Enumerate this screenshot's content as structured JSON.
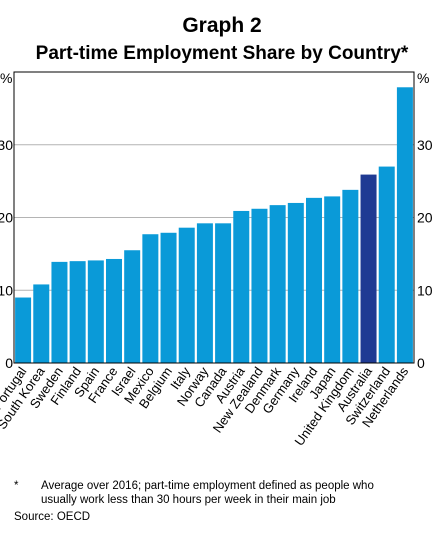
{
  "chart_data": {
    "type": "bar",
    "title": "Graph 2",
    "subtitle": "Part-time Employment Share by Country*",
    "ylabel": "%",
    "ylim": [
      0,
      40
    ],
    "yticks": [
      0,
      10,
      20,
      30
    ],
    "grid": true,
    "categories": [
      "Portugal",
      "South Korea",
      "Sweden",
      "Finland",
      "Spain",
      "France",
      "Israel",
      "Mexico",
      "Belgium",
      "Italy",
      "Norway",
      "Canada",
      "Austria",
      "New Zealand",
      "Denmark",
      "Germany",
      "Ireland",
      "Japan",
      "United Kingdom",
      "Australia",
      "Switzerland",
      "Netherlands"
    ],
    "values": [
      9.0,
      10.8,
      13.9,
      14.0,
      14.1,
      14.3,
      15.5,
      17.7,
      17.9,
      18.6,
      19.2,
      19.2,
      20.9,
      21.2,
      21.7,
      22.0,
      22.7,
      22.9,
      23.8,
      25.9,
      27.0,
      37.9
    ],
    "highlight": "Australia",
    "colors": {
      "bar": "#0a9ad8",
      "highlight": "#1f3a93",
      "grid": "#b4b4b4"
    }
  },
  "footnote": {
    "marker": "*",
    "line1": "Average over 2016; part-time employment defined as people who",
    "line2": "usually work less than 30 hours per week in their main job",
    "source": "Source:   OECD"
  }
}
